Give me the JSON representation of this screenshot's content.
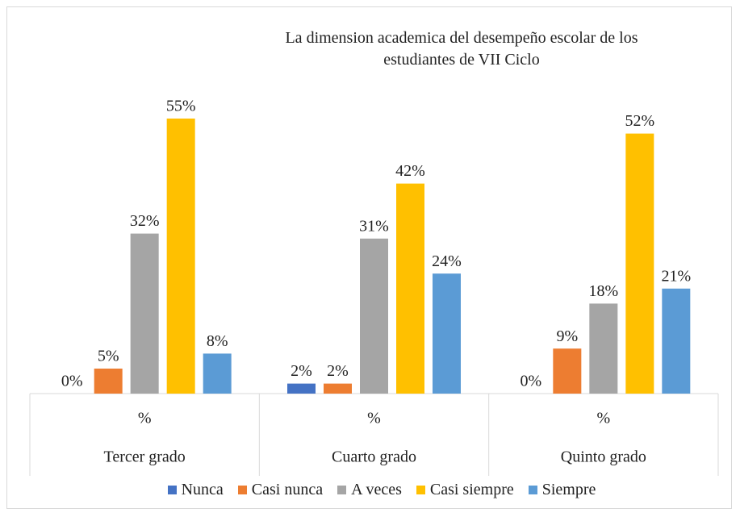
{
  "chart_data": {
    "type": "bar",
    "title": "La dimension academica del desempeño escolar de los estudiantes de VII Ciclo",
    "categories": [
      "Tercer grado",
      "Cuarto grado",
      "Quinto grado"
    ],
    "subcategories": [
      "%",
      "%",
      "%"
    ],
    "ylim": [
      0,
      60
    ],
    "legend": "bottom",
    "series": [
      {
        "name": "Nunca",
        "color": "#4472c4",
        "values": [
          0,
          2,
          0
        ],
        "value_labels": [
          "0%",
          "2%",
          "0%"
        ]
      },
      {
        "name": "Casi nunca",
        "color": "#ed7d31",
        "values": [
          5,
          2,
          9
        ],
        "value_labels": [
          "5%",
          "2%",
          "9%"
        ]
      },
      {
        "name": "A veces",
        "color": "#a5a5a5",
        "values": [
          32,
          31,
          18
        ],
        "value_labels": [
          "32%",
          "31%",
          "18%"
        ]
      },
      {
        "name": "Casi siempre",
        "color": "#ffc000",
        "values": [
          55,
          42,
          52
        ],
        "value_labels": [
          "55%",
          "42%",
          "52%"
        ]
      },
      {
        "name": "Siempre",
        "color": "#5b9bd5",
        "values": [
          8,
          24,
          21
        ],
        "value_labels": [
          "8%",
          "24%",
          "21%"
        ]
      }
    ]
  }
}
